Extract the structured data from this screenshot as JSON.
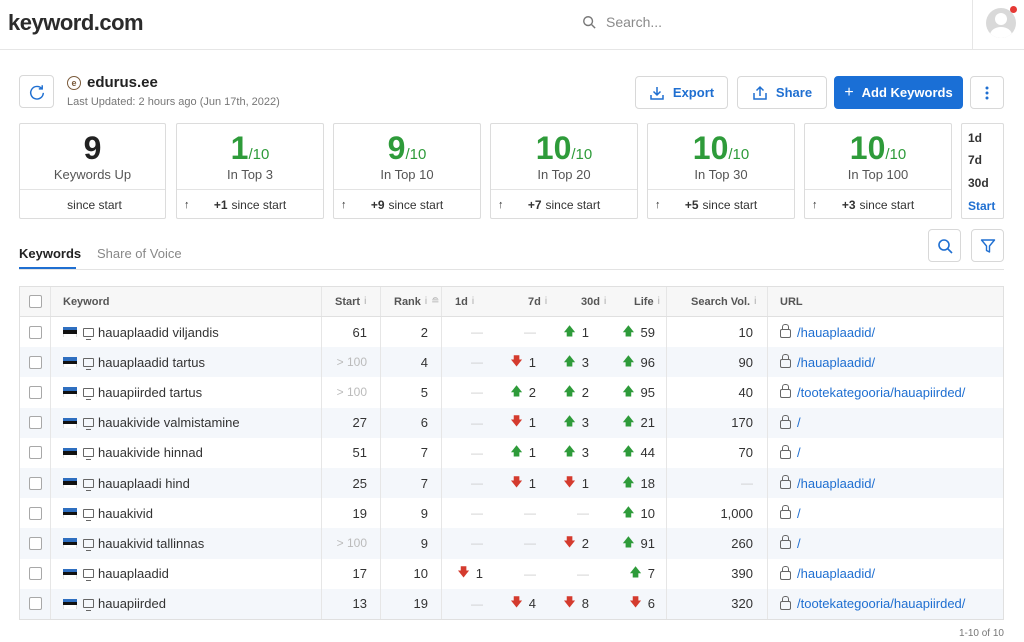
{
  "app": {
    "logo": "keyword.com"
  },
  "search": {
    "placeholder": "Search..."
  },
  "project": {
    "name": "edurus.ee",
    "updated": "Last Updated: 2 hours ago (Jun 17th, 2022)"
  },
  "actions": {
    "export": "Export",
    "share": "Share",
    "add": "Add Keywords"
  },
  "stats": [
    {
      "value": "9",
      "of": "",
      "label": "Keywords Up",
      "foot_arrow": "",
      "foot_bold": "",
      "foot_text": "since start",
      "green": false
    },
    {
      "value": "1",
      "of": "/10",
      "label": "In Top 3",
      "foot_arrow": "↑",
      "foot_bold": "+1",
      "foot_text": "since start",
      "green": true
    },
    {
      "value": "9",
      "of": "/10",
      "label": "In Top 10",
      "foot_arrow": "↑",
      "foot_bold": "+9",
      "foot_text": "since start",
      "green": true
    },
    {
      "value": "10",
      "of": "/10",
      "label": "In Top 20",
      "foot_arrow": "↑",
      "foot_bold": "+7",
      "foot_text": "since start",
      "green": true
    },
    {
      "value": "10",
      "of": "/10",
      "label": "In Top 30",
      "foot_arrow": "↑",
      "foot_bold": "+5",
      "foot_text": "since start",
      "green": true
    },
    {
      "value": "10",
      "of": "/10",
      "label": "In Top 100",
      "foot_arrow": "↑",
      "foot_bold": "+3",
      "foot_text": "since start",
      "green": true
    }
  ],
  "periods": [
    "1d",
    "7d",
    "30d",
    "Start"
  ],
  "active_period": "Start",
  "tabs": {
    "keywords": "Keywords",
    "sov": "Share of Voice"
  },
  "table": {
    "headers": {
      "keyword": "Keyword",
      "start": "Start",
      "rank": "Rank",
      "d1": "1d",
      "d7": "7d",
      "d30": "30d",
      "life": "Life",
      "volume": "Search Vol.",
      "url": "URL"
    },
    "rows": [
      {
        "keyword": "hauaplaadid viljandis",
        "start": "61",
        "start_muted": false,
        "rank": "2",
        "d1": {
          "dir": "",
          "v": ""
        },
        "d7": {
          "dir": "",
          "v": ""
        },
        "d30": {
          "dir": "up",
          "v": "1"
        },
        "life": {
          "dir": "up",
          "v": "59"
        },
        "volume": "10",
        "url": "/hauaplaadid/"
      },
      {
        "keyword": "hauaplaadid tartus",
        "start": "> 100",
        "start_muted": true,
        "rank": "4",
        "d1": {
          "dir": "",
          "v": ""
        },
        "d7": {
          "dir": "down",
          "v": "1"
        },
        "d30": {
          "dir": "up",
          "v": "3"
        },
        "life": {
          "dir": "up",
          "v": "96"
        },
        "volume": "90",
        "url": "/hauaplaadid/"
      },
      {
        "keyword": "hauapiirded tartus",
        "start": "> 100",
        "start_muted": true,
        "rank": "5",
        "d1": {
          "dir": "",
          "v": ""
        },
        "d7": {
          "dir": "up",
          "v": "2"
        },
        "d30": {
          "dir": "up",
          "v": "2"
        },
        "life": {
          "dir": "up",
          "v": "95"
        },
        "volume": "40",
        "url": "/tootekategooria/hauapiirded/"
      },
      {
        "keyword": "hauakivide valmistamine",
        "start": "27",
        "start_muted": false,
        "rank": "6",
        "d1": {
          "dir": "",
          "v": ""
        },
        "d7": {
          "dir": "down",
          "v": "1"
        },
        "d30": {
          "dir": "up",
          "v": "3"
        },
        "life": {
          "dir": "up",
          "v": "21"
        },
        "volume": "170",
        "url": "/"
      },
      {
        "keyword": "hauakivide hinnad",
        "start": "51",
        "start_muted": false,
        "rank": "7",
        "d1": {
          "dir": "",
          "v": ""
        },
        "d7": {
          "dir": "up",
          "v": "1"
        },
        "d30": {
          "dir": "up",
          "v": "3"
        },
        "life": {
          "dir": "up",
          "v": "44"
        },
        "volume": "70",
        "url": "/"
      },
      {
        "keyword": "hauaplaadi hind",
        "start": "25",
        "start_muted": false,
        "rank": "7",
        "d1": {
          "dir": "",
          "v": ""
        },
        "d7": {
          "dir": "down",
          "v": "1"
        },
        "d30": {
          "dir": "down",
          "v": "1"
        },
        "life": {
          "dir": "up",
          "v": "18"
        },
        "volume": "",
        "url": "/hauaplaadid/"
      },
      {
        "keyword": "hauakivid",
        "start": "19",
        "start_muted": false,
        "rank": "9",
        "d1": {
          "dir": "",
          "v": ""
        },
        "d7": {
          "dir": "",
          "v": ""
        },
        "d30": {
          "dir": "",
          "v": ""
        },
        "life": {
          "dir": "up",
          "v": "10"
        },
        "volume": "1,000",
        "url": "/"
      },
      {
        "keyword": "hauakivid tallinnas",
        "start": "> 100",
        "start_muted": true,
        "rank": "9",
        "d1": {
          "dir": "",
          "v": ""
        },
        "d7": {
          "dir": "",
          "v": ""
        },
        "d30": {
          "dir": "down",
          "v": "2"
        },
        "life": {
          "dir": "up",
          "v": "91"
        },
        "volume": "260",
        "url": "/"
      },
      {
        "keyword": "hauaplaadid",
        "start": "17",
        "start_muted": false,
        "rank": "10",
        "d1": {
          "dir": "down",
          "v": "1"
        },
        "d7": {
          "dir": "",
          "v": ""
        },
        "d30": {
          "dir": "",
          "v": ""
        },
        "life": {
          "dir": "up",
          "v": "7"
        },
        "volume": "390",
        "url": "/hauaplaadid/"
      },
      {
        "keyword": "hauapiirded",
        "start": "13",
        "start_muted": false,
        "rank": "19",
        "d1": {
          "dir": "",
          "v": ""
        },
        "d7": {
          "dir": "down",
          "v": "4"
        },
        "d30": {
          "dir": "down",
          "v": "8"
        },
        "life": {
          "dir": "down",
          "v": "6"
        },
        "volume": "320",
        "url": "/tootekategooria/hauapiirded/"
      }
    ]
  },
  "pagination": "1-10 of 10",
  "colors": {
    "accent": "#1a6fd6",
    "up": "#2e9b3a",
    "down": "#d43b2e"
  },
  "icons": {
    "refresh": "refresh-icon",
    "export": "download-icon",
    "share": "share-icon",
    "search": "search-icon",
    "filter": "filter-icon",
    "more": "kebab-icon"
  }
}
